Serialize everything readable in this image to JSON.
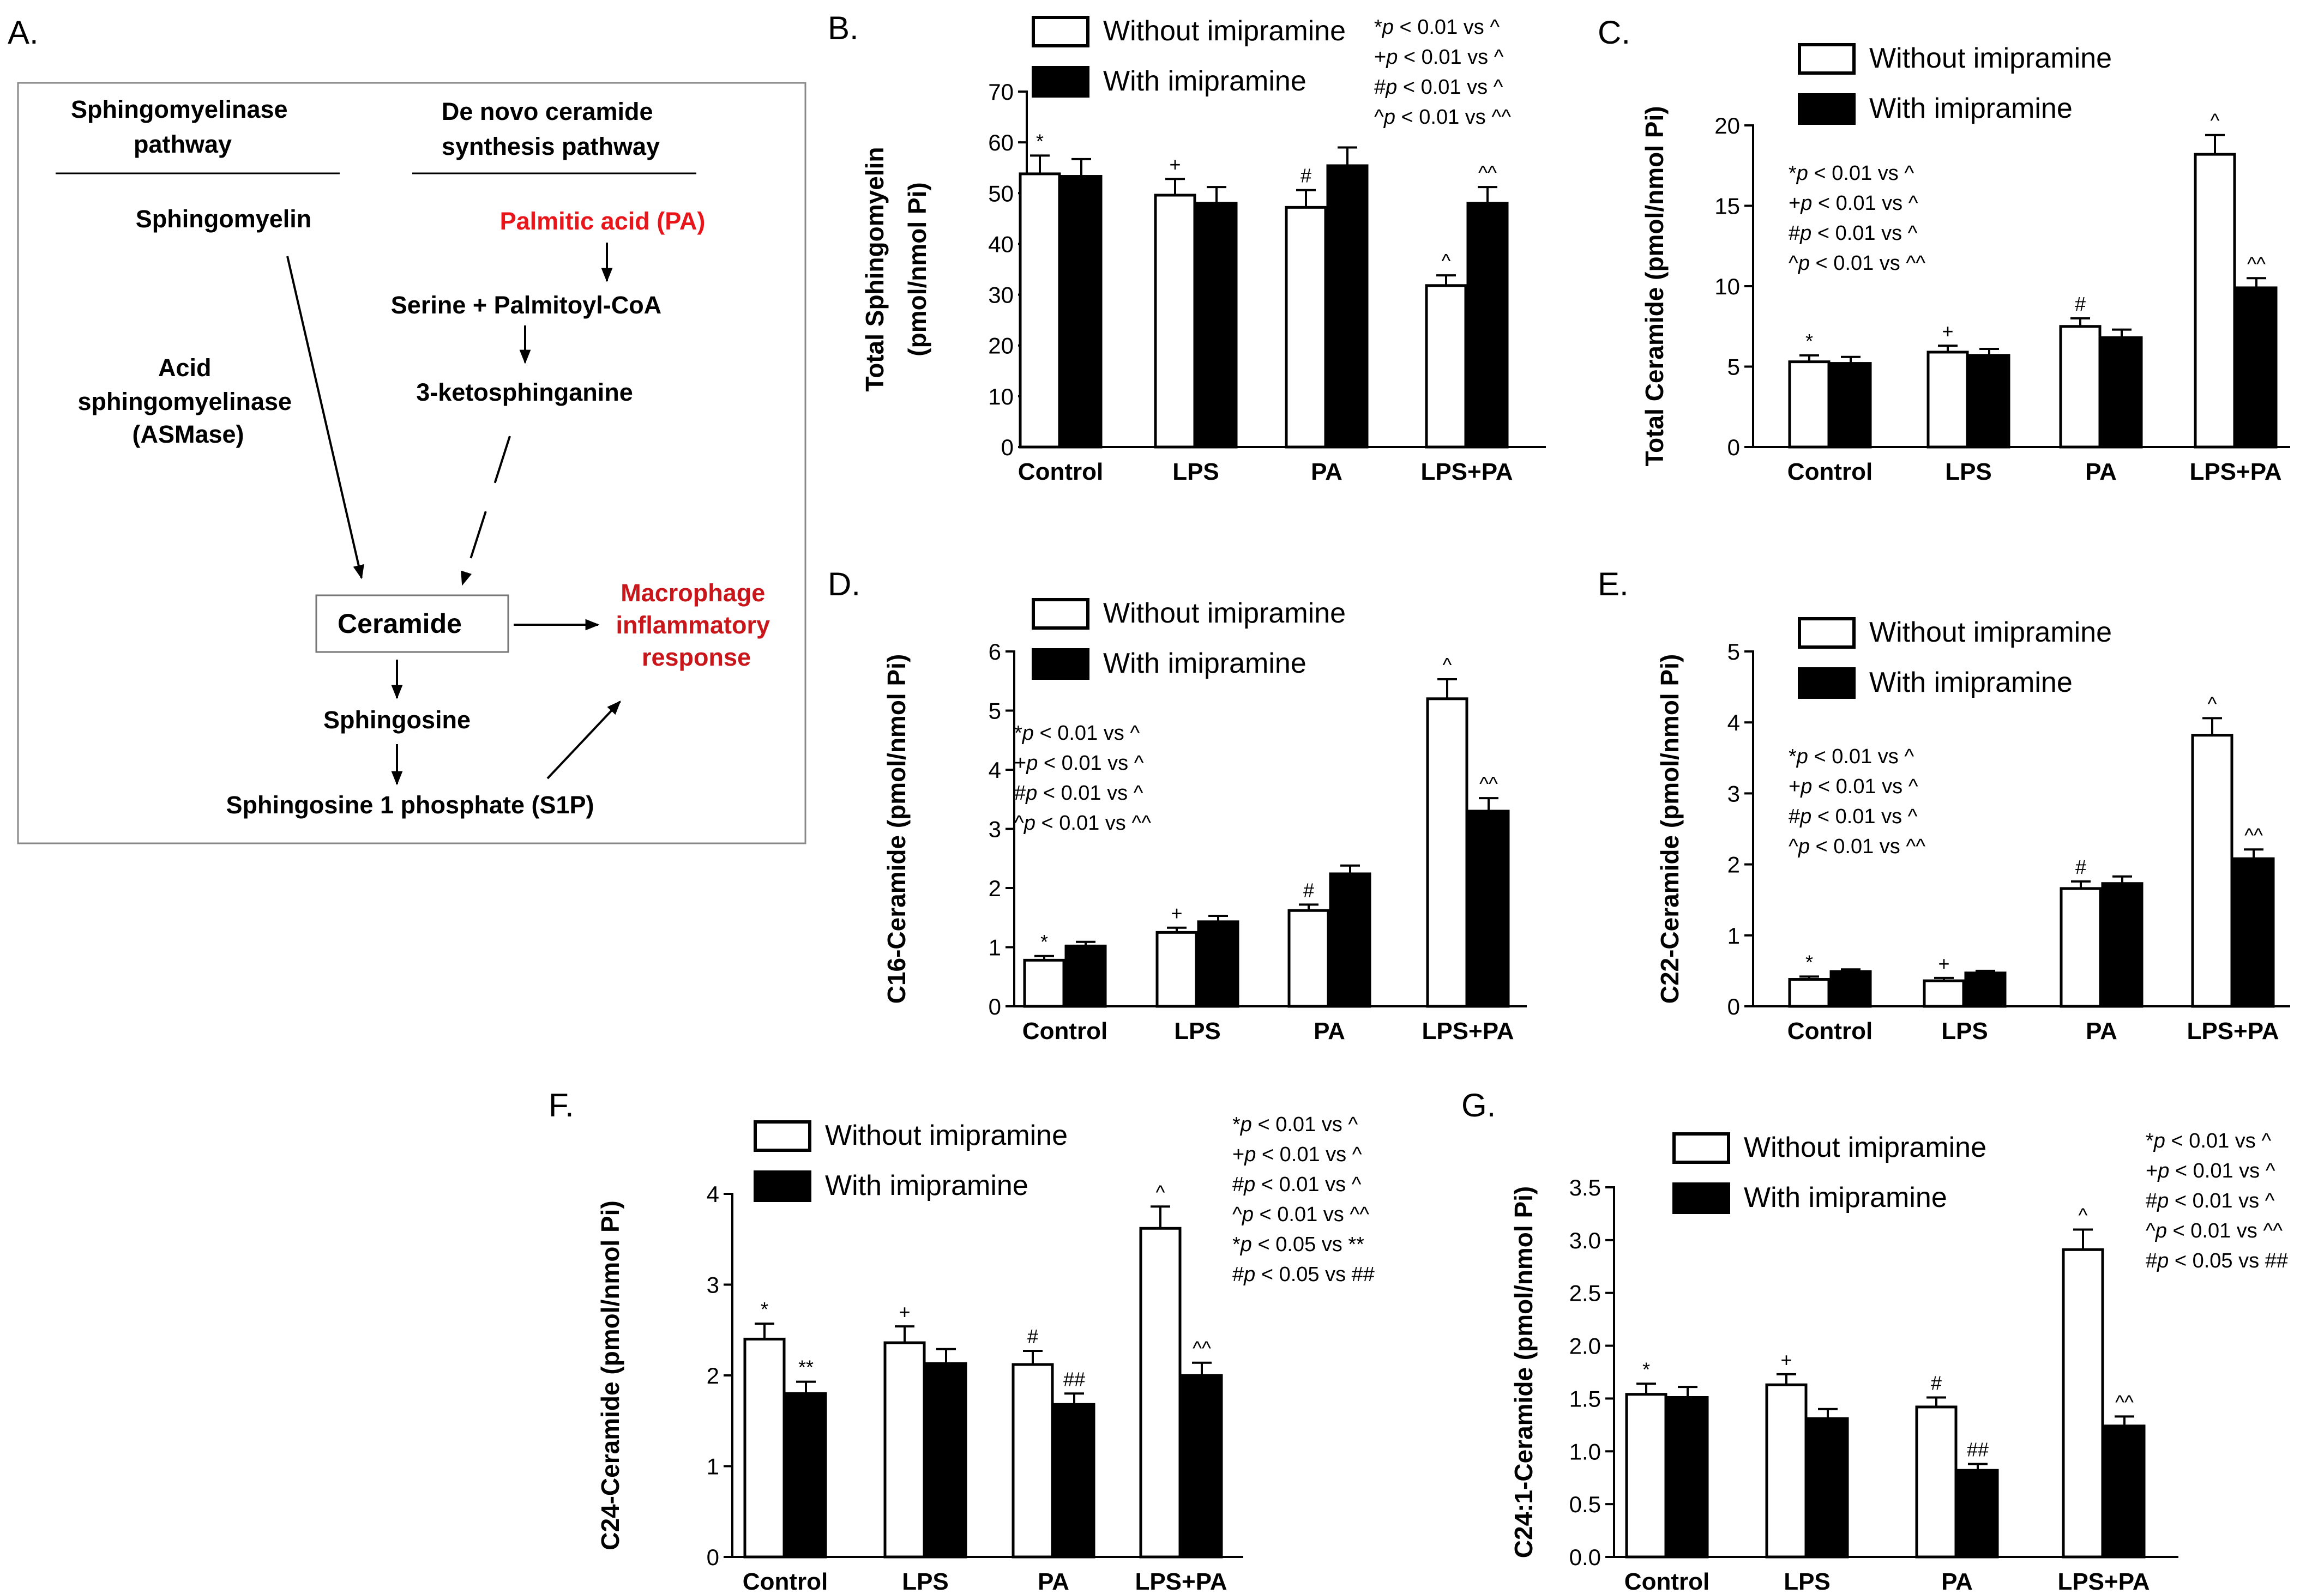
{
  "panel_letters": [
    "A.",
    "B.",
    "C.",
    "D.",
    "E.",
    "F.",
    "G."
  ],
  "diagram": {
    "col1_title": [
      "Sphingomyelinase",
      "pathway"
    ],
    "col2_title": [
      "De novo ceramide",
      "synthesis pathway"
    ],
    "sphingomyelin": "Sphingomyelin",
    "palmitic_acid": "Palmitic acid (PA)",
    "serine": "Serine + Palmitoyl-CoA",
    "ketosphinganine": "3-ketosphinganine",
    "enzyme": [
      "Acid",
      "sphingomyelinase",
      "(ASMase)"
    ],
    "ceramide": "Ceramide",
    "response": [
      "Macrophage",
      "inflammatory",
      "response"
    ],
    "sphingosine": "Sphingosine",
    "s1p": "Sphingosine 1 phosphate (S1P)"
  },
  "colors": {
    "without": "#ffffff",
    "with": "#000000",
    "red": "#e8161b",
    "dark_red": "#c8161b"
  },
  "chart_data": [
    {
      "id": "B",
      "type": "bar",
      "categories": [
        "Control",
        "LPS",
        "PA",
        "LPS+PA"
      ],
      "ylabel": [
        "Total Sphingomyelin",
        "(pmol/nmol Pi)"
      ],
      "ylim": [
        0,
        70
      ],
      "yticks": [
        "0",
        "10",
        "20",
        "30",
        "40",
        "50",
        "60",
        "70"
      ],
      "series": [
        {
          "name": "Without imipramine",
          "values": [
            53.8,
            49.6,
            47.2,
            31.8
          ],
          "errors": [
            3.6,
            3.2,
            3.4,
            2.0
          ],
          "marks": [
            "*",
            "+",
            "#",
            "^"
          ]
        },
        {
          "name": "With imipramine",
          "values": [
            53.3,
            48.0,
            55.4,
            48.0
          ],
          "errors": [
            3.4,
            3.2,
            3.6,
            3.2
          ],
          "marks": [
            "",
            "",
            "",
            "^^"
          ]
        }
      ],
      "stats": [
        "*p < 0.01 vs ^",
        "+p < 0.01 vs ^",
        "#p < 0.01 vs ^",
        "^p < 0.01 vs ^^"
      ]
    },
    {
      "id": "C",
      "type": "bar",
      "categories": [
        "Control",
        "LPS",
        "PA",
        "LPS+PA"
      ],
      "ylabel": [
        "Total Ceramide (pmol/nmol Pi)"
      ],
      "ylim": [
        0,
        20
      ],
      "yticks": [
        "0",
        "5",
        "10",
        "15",
        "20"
      ],
      "series": [
        {
          "name": "Without imipramine",
          "values": [
            5.3,
            5.9,
            7.5,
            18.2
          ],
          "errors": [
            0.4,
            0.4,
            0.5,
            1.2
          ],
          "marks": [
            "*",
            "+",
            "#",
            "^"
          ]
        },
        {
          "name": "With imipramine",
          "values": [
            5.2,
            5.7,
            6.8,
            9.9
          ],
          "errors": [
            0.4,
            0.4,
            0.5,
            0.6
          ],
          "marks": [
            "",
            "",
            "",
            "^^"
          ]
        }
      ],
      "stats": [
        "*p < 0.01 vs ^",
        "+p < 0.01 vs ^",
        "#p < 0.01 vs ^",
        "^p < 0.01 vs ^^"
      ]
    },
    {
      "id": "D",
      "type": "bar",
      "categories": [
        "Control",
        "LPS",
        "PA",
        "LPS+PA"
      ],
      "ylabel": [
        "C16-Ceramide (pmol/nmol Pi)"
      ],
      "ylim": [
        0,
        6
      ],
      "yticks": [
        "0",
        "1",
        "2",
        "3",
        "4",
        "5",
        "6"
      ],
      "series": [
        {
          "name": "Without imipramine",
          "values": [
            0.78,
            1.25,
            1.62,
            5.2
          ],
          "errors": [
            0.07,
            0.08,
            0.1,
            0.33
          ],
          "marks": [
            "*",
            "+",
            "#",
            "^"
          ]
        },
        {
          "name": "With imipramine",
          "values": [
            1.02,
            1.43,
            2.24,
            3.3
          ],
          "errors": [
            0.07,
            0.1,
            0.14,
            0.22
          ],
          "marks": [
            "",
            "",
            "",
            "^^"
          ]
        }
      ],
      "stats": [
        "*p < 0.01 vs ^",
        "+p < 0.01 vs ^",
        "#p < 0.01 vs ^",
        "^p < 0.01 vs ^^"
      ]
    },
    {
      "id": "E",
      "type": "bar",
      "categories": [
        "Control",
        "LPS",
        "PA",
        "LPS+PA"
      ],
      "ylabel": [
        "C22-Ceramide (pmol/nmol Pi)"
      ],
      "ylim": [
        0,
        5
      ],
      "yticks": [
        "0",
        "1",
        "2",
        "3",
        "4",
        "5"
      ],
      "series": [
        {
          "name": "Without imipramine",
          "values": [
            0.38,
            0.36,
            1.66,
            3.82
          ],
          "errors": [
            0.04,
            0.04,
            0.1,
            0.24
          ],
          "marks": [
            "*",
            "+",
            "#",
            "^"
          ]
        },
        {
          "name": "With imipramine",
          "values": [
            0.49,
            0.47,
            1.73,
            2.08
          ],
          "errors": [
            0.03,
            0.03,
            0.1,
            0.13
          ],
          "marks": [
            "",
            "",
            "",
            "^^"
          ]
        }
      ],
      "stats": [
        "*p < 0.01 vs ^",
        "+p < 0.01 vs ^",
        "#p < 0.01 vs ^",
        "^p < 0.01 vs ^^"
      ]
    },
    {
      "id": "F",
      "type": "bar",
      "categories": [
        "Control",
        "LPS",
        "PA",
        "LPS+PA"
      ],
      "ylabel": [
        "C24-Ceramide (pmol/nmol Pi)"
      ],
      "ylim": [
        0,
        4
      ],
      "yticks": [
        "0",
        "1",
        "2",
        "3",
        "4"
      ],
      "series": [
        {
          "name": "Without imipramine",
          "values": [
            2.4,
            2.36,
            2.12,
            3.62
          ],
          "errors": [
            0.17,
            0.18,
            0.15,
            0.24
          ],
          "marks": [
            "*",
            "+",
            "#",
            "^"
          ]
        },
        {
          "name": "With imipramine",
          "values": [
            1.8,
            2.13,
            1.68,
            2.0
          ],
          "errors": [
            0.13,
            0.16,
            0.12,
            0.14
          ],
          "marks": [
            "**",
            "",
            "##",
            "^^"
          ]
        }
      ],
      "stats": [
        "*p < 0.01 vs ^",
        "+p < 0.01 vs ^",
        "#p < 0.01 vs ^",
        "^p < 0.01 vs ^^",
        "*p < 0.05 vs **",
        "#p < 0.05 vs ##"
      ]
    },
    {
      "id": "G",
      "type": "bar",
      "categories": [
        "Control",
        "LPS",
        "PA",
        "LPS+PA"
      ],
      "ylabel": [
        "C24:1-Ceramide (pmol/nmol Pi)"
      ],
      "ylim": [
        0,
        3.5
      ],
      "yticks": [
        "0.0",
        "0.5",
        "1.0",
        "1.5",
        "2.0",
        "2.5",
        "3.0",
        "3.5"
      ],
      "series": [
        {
          "name": "Without imipramine",
          "values": [
            1.54,
            1.63,
            1.42,
            2.91
          ],
          "errors": [
            0.1,
            0.1,
            0.09,
            0.19
          ],
          "marks": [
            "*",
            "+",
            "#",
            "^"
          ]
        },
        {
          "name": "With imipramine",
          "values": [
            1.51,
            1.31,
            0.82,
            1.24
          ],
          "errors": [
            0.1,
            0.09,
            0.06,
            0.09
          ],
          "marks": [
            "",
            "",
            "##",
            "^^"
          ]
        }
      ],
      "stats": [
        "*p < 0.01 vs ^",
        "+p < 0.01 vs ^",
        "#p < 0.01 vs ^",
        "^p < 0.01 vs ^^",
        "#p < 0.05 vs ##"
      ]
    }
  ]
}
